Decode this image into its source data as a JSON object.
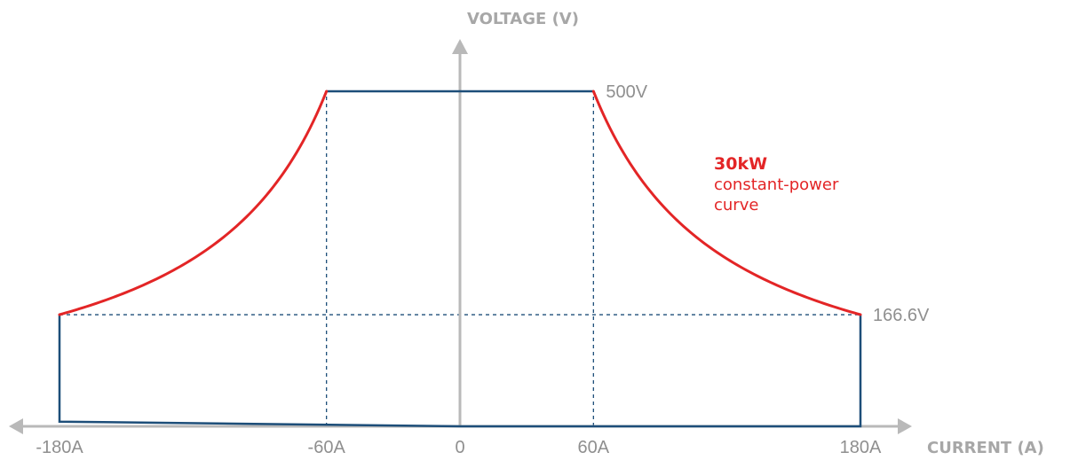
{
  "colors": {
    "axis": "#b9b9b9",
    "envelope": "#1d4e79",
    "curve": "#e32526",
    "guide": "#1d4e79",
    "label": "#8f8f8f"
  },
  "chart_data": {
    "type": "line",
    "title": "",
    "xlabel": "CURRENT (A)",
    "ylabel": "VOLTAGE (V)",
    "xlim": [
      -180,
      180
    ],
    "ylim": [
      0,
      500
    ],
    "grid": false,
    "x_ticks": [
      {
        "value": -180,
        "label": "-180A"
      },
      {
        "value": -60,
        "label": "-60A"
      },
      {
        "value": 0,
        "label": "0"
      },
      {
        "value": 60,
        "label": "60A"
      },
      {
        "value": 180,
        "label": "180A"
      }
    ],
    "value_labels": [
      {
        "x": 60,
        "y": 500,
        "label": "500V"
      },
      {
        "x": 180,
        "y": 166.6,
        "label": "166.6V"
      }
    ],
    "power_kw": 30,
    "annotation": {
      "title": "30kW",
      "lines": [
        "constant-power",
        "curve"
      ]
    },
    "series": [
      {
        "style": "envelope",
        "points": [
          [
            -60,
            500
          ],
          [
            60,
            500
          ]
        ]
      },
      {
        "style": "envelope",
        "points": [
          [
            180,
            166.6
          ],
          [
            180,
            0
          ],
          [
            0,
            0
          ],
          [
            -180,
            7
          ],
          [
            -180,
            166.6
          ]
        ]
      },
      {
        "style": "constant-power",
        "x_range": [
          -180,
          -60
        ]
      },
      {
        "style": "constant-power",
        "x_range": [
          60,
          180
        ]
      },
      {
        "style": "guide",
        "points": [
          [
            -180,
            166.6
          ],
          [
            180,
            166.6
          ]
        ]
      },
      {
        "style": "guide",
        "points": [
          [
            -60,
            0
          ],
          [
            -60,
            500
          ]
        ]
      },
      {
        "style": "guide",
        "points": [
          [
            60,
            0
          ],
          [
            60,
            500
          ]
        ]
      }
    ]
  }
}
